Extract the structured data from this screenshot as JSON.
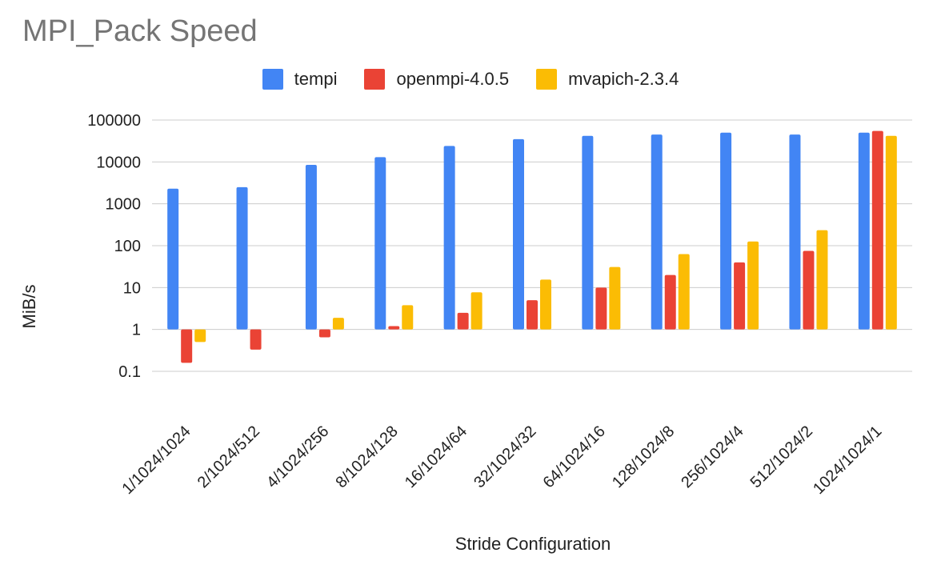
{
  "chart_data": {
    "type": "bar",
    "title": "MPI_Pack Speed",
    "xlabel": "Stride Configuration",
    "ylabel": "MiB/s",
    "yscale": "log",
    "ylim": [
      0.1,
      100000
    ],
    "yticks": [
      {
        "value": 0.1,
        "label": "0.1"
      },
      {
        "value": 1,
        "label": "1"
      },
      {
        "value": 10,
        "label": "10"
      },
      {
        "value": 100,
        "label": "100"
      },
      {
        "value": 1000,
        "label": "1000"
      },
      {
        "value": 10000,
        "label": "10000"
      },
      {
        "value": 100000,
        "label": "100000"
      }
    ],
    "bar_baseline": 1,
    "grid": true,
    "legend_position": "top",
    "categories": [
      "1/1024/1024",
      "2/1024/512",
      "4/1024/256",
      "8/1024/128",
      "16/1024/64",
      "32/1024/32",
      "64/1024/16",
      "128/1024/8",
      "256/1024/4",
      "512/1024/2",
      "1024/1024/1"
    ],
    "series": [
      {
        "name": "tempi",
        "color": "#4285f4",
        "values": [
          2300,
          2500,
          8500,
          13000,
          24000,
          35000,
          42000,
          45000,
          50000,
          45000,
          50000
        ]
      },
      {
        "name": "openmpi-4.0.5",
        "color": "#ea4335",
        "values": [
          0.16,
          0.33,
          0.65,
          1.2,
          2.5,
          5,
          10,
          20,
          40,
          75,
          55000
        ]
      },
      {
        "name": "mvapich-2.3.4",
        "color": "#fbbc04",
        "values": [
          0.5,
          null,
          1.9,
          3.8,
          7.7,
          15.5,
          31,
          63,
          126,
          235,
          42000
        ]
      }
    ]
  }
}
